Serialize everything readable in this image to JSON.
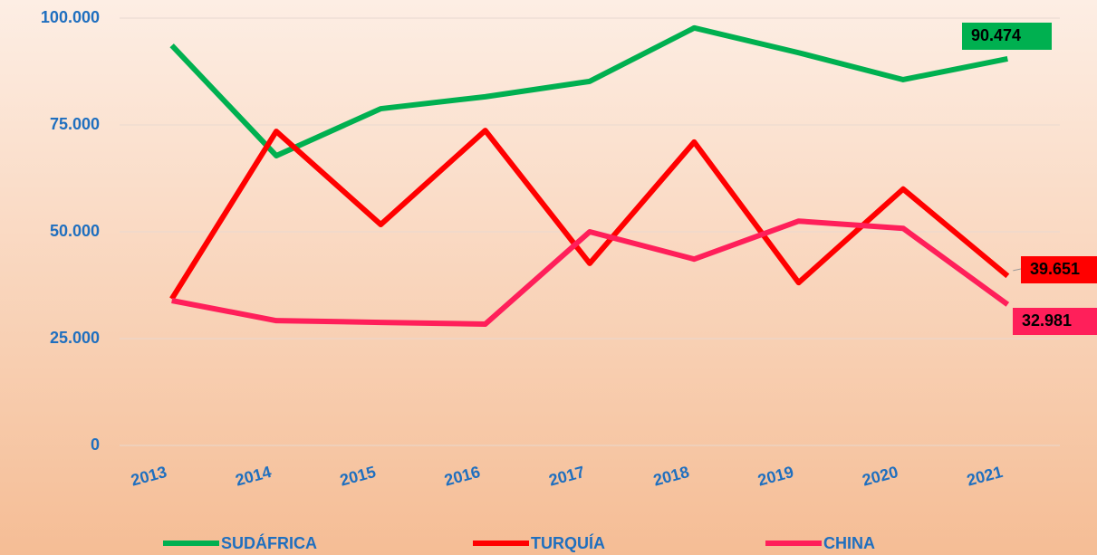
{
  "chart_data": {
    "type": "line",
    "categories": [
      "2013",
      "2014",
      "2015",
      "2016",
      "2017",
      "2018",
      "2019",
      "2020",
      "2021"
    ],
    "series": [
      {
        "name": "SUDÁFRICA",
        "color": "#00b050",
        "values": [
          93600,
          67800,
          78800,
          81600,
          85200,
          97700,
          91900,
          85600,
          90474
        ],
        "value_labels": [
          null,
          null,
          null,
          null,
          null,
          null,
          null,
          null,
          "90.474"
        ]
      },
      {
        "name": "TURQUÍA",
        "color": "#ff0000",
        "values": [
          34300,
          73500,
          51700,
          73700,
          42600,
          71000,
          38100,
          60000,
          39651
        ],
        "value_labels": [
          null,
          null,
          null,
          null,
          null,
          null,
          null,
          null,
          "39.651"
        ]
      },
      {
        "name": "CHINA",
        "color": "#ff1f5a",
        "values": [
          33900,
          29200,
          28800,
          28400,
          50000,
          43600,
          52500,
          50800,
          32981
        ],
        "value_labels": [
          null,
          null,
          null,
          null,
          null,
          null,
          null,
          null,
          "32.981"
        ]
      }
    ],
    "ylim": [
      0,
      100000
    ],
    "yticks": [
      0,
      {
        "value": 25000,
        "label": "25.000"
      },
      {
        "value": 50000,
        "label": "50.000"
      },
      {
        "value": 75000,
        "label": "75.000"
      },
      {
        "value": 100000,
        "label": "100.000"
      }
    ],
    "grid": true,
    "legend": "bottom"
  }
}
